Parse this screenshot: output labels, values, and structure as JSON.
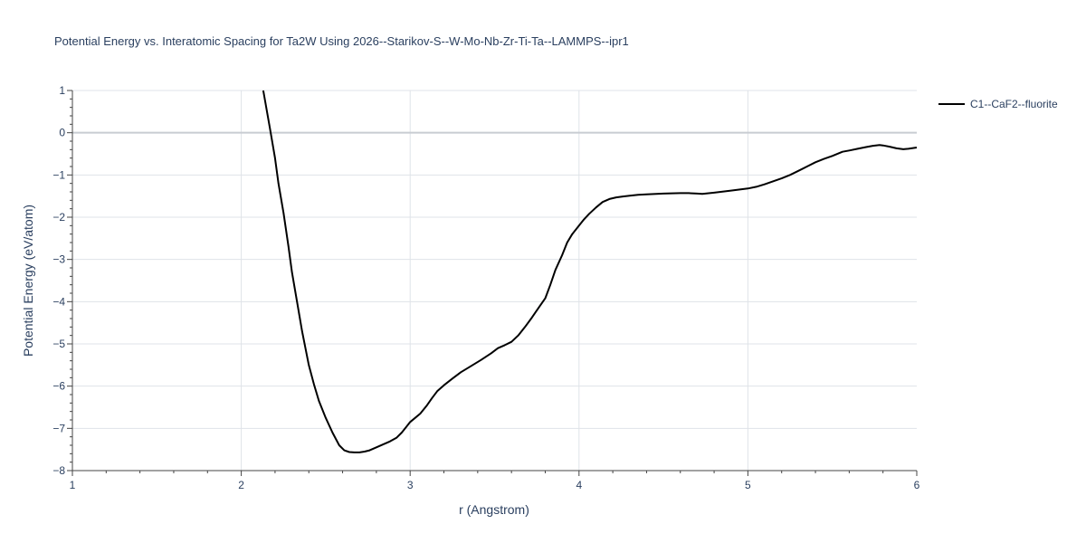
{
  "chart_data": {
    "type": "line",
    "title": "Potential Energy vs. Interatomic Spacing for Ta2W Using 2026--Starikov-S--W-Mo-Nb-Zr-Ti-Ta--LAMMPS--ipr1",
    "xlabel": "r (Angstrom)",
    "ylabel": "Potential Energy (eV/atom)",
    "xlim": [
      1,
      6
    ],
    "ylim": [
      -8,
      1
    ],
    "xticks": [
      "1",
      "2",
      "3",
      "4",
      "5",
      "6"
    ],
    "yticks": [
      "1",
      "0",
      "−1",
      "−2",
      "−3",
      "−4",
      "−5",
      "−6",
      "−7",
      "−8"
    ],
    "grid": true,
    "legend_position": "top-right",
    "series": [
      {
        "name": "C1--CaF2--fluorite",
        "color": "#000000",
        "x": [
          2.13,
          2.17,
          2.2,
          2.22,
          2.25,
          2.28,
          2.3,
          2.33,
          2.36,
          2.4,
          2.43,
          2.46,
          2.5,
          2.54,
          2.58,
          2.61,
          2.64,
          2.67,
          2.7,
          2.73,
          2.76,
          2.8,
          2.84,
          2.88,
          2.92,
          2.95,
          2.98,
          3.0,
          3.03,
          3.06,
          3.1,
          3.13,
          3.16,
          3.2,
          3.25,
          3.3,
          3.35,
          3.42,
          3.48,
          3.52,
          3.56,
          3.6,
          3.64,
          3.68,
          3.72,
          3.76,
          3.8,
          3.83,
          3.86,
          3.9,
          3.93,
          3.96,
          4.0,
          4.03,
          4.06,
          4.1,
          4.14,
          4.18,
          4.22,
          4.26,
          4.3,
          4.35,
          4.4,
          4.5,
          4.6,
          4.65,
          4.7,
          4.73,
          4.8,
          4.9,
          5.0,
          5.05,
          5.1,
          5.15,
          5.2,
          5.25,
          5.3,
          5.35,
          5.4,
          5.45,
          5.5,
          5.56,
          5.6,
          5.65,
          5.7,
          5.74,
          5.78,
          5.8,
          5.84,
          5.88,
          5.92,
          5.95,
          6.0
        ],
        "y": [
          1.0,
          0.1,
          -0.6,
          -1.2,
          -1.9,
          -2.7,
          -3.3,
          -4.0,
          -4.7,
          -5.5,
          -5.95,
          -6.35,
          -6.75,
          -7.1,
          -7.4,
          -7.52,
          -7.56,
          -7.57,
          -7.57,
          -7.55,
          -7.52,
          -7.45,
          -7.38,
          -7.31,
          -7.22,
          -7.1,
          -6.95,
          -6.85,
          -6.75,
          -6.65,
          -6.45,
          -6.28,
          -6.12,
          -5.98,
          -5.82,
          -5.67,
          -5.55,
          -5.38,
          -5.22,
          -5.1,
          -5.03,
          -4.95,
          -4.8,
          -4.6,
          -4.38,
          -4.15,
          -3.92,
          -3.6,
          -3.25,
          -2.9,
          -2.6,
          -2.4,
          -2.2,
          -2.05,
          -1.92,
          -1.77,
          -1.64,
          -1.57,
          -1.53,
          -1.51,
          -1.49,
          -1.47,
          -1.46,
          -1.44,
          -1.43,
          -1.43,
          -1.44,
          -1.45,
          -1.42,
          -1.37,
          -1.32,
          -1.28,
          -1.22,
          -1.15,
          -1.08,
          -1.0,
          -0.9,
          -0.8,
          -0.7,
          -0.62,
          -0.55,
          -0.45,
          -0.42,
          -0.38,
          -0.34,
          -0.31,
          -0.29,
          -0.3,
          -0.33,
          -0.37,
          -0.39,
          -0.38,
          -0.35
        ]
      }
    ]
  }
}
